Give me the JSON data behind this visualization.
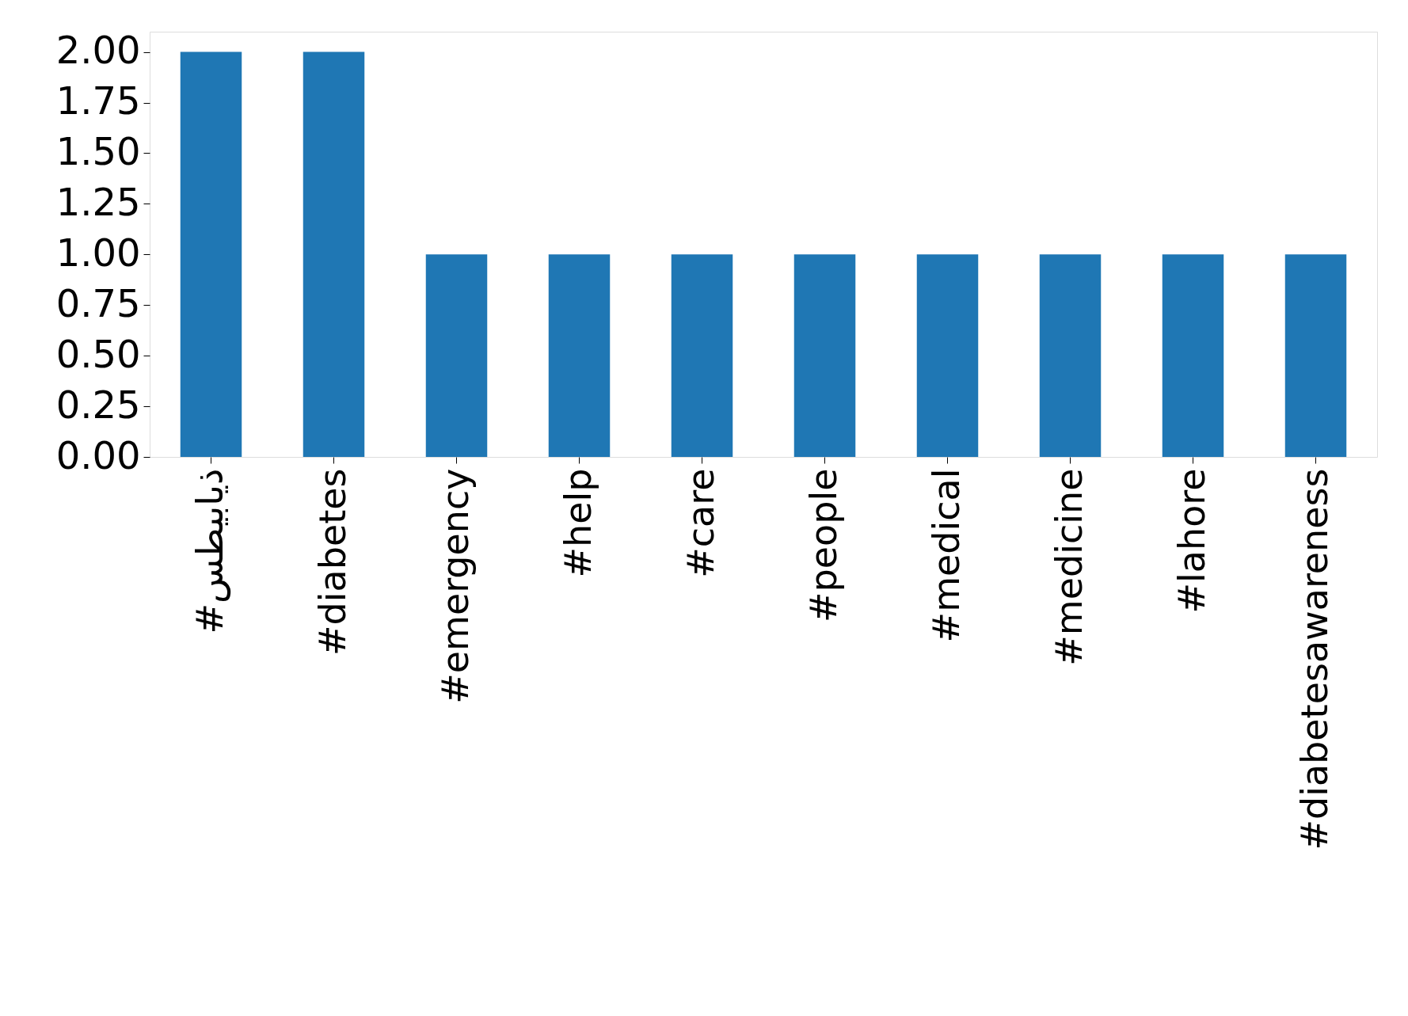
{
  "chart_data": {
    "type": "bar",
    "categories": [
      "#ذیابیطس",
      "#diabetes",
      "#emergency",
      "#help",
      "#care",
      "#people",
      "#medical",
      "#medicine",
      "#lahore",
      "#diabetesawareness"
    ],
    "values": [
      2,
      2,
      1,
      1,
      1,
      1,
      1,
      1,
      1,
      1
    ],
    "color": "#1f77b4",
    "ylim": [
      0,
      2.1
    ],
    "yticks": [
      {
        "value": 0,
        "label": "0.00"
      },
      {
        "value": 0.25,
        "label": "0.25"
      },
      {
        "value": 0.5,
        "label": "0.50"
      },
      {
        "value": 0.75,
        "label": "0.75"
      },
      {
        "value": 1,
        "label": "1.00"
      },
      {
        "value": 1.25,
        "label": "1.25"
      },
      {
        "value": 1.5,
        "label": "1.50"
      },
      {
        "value": 1.75,
        "label": "1.75"
      },
      {
        "value": 2,
        "label": "2.00"
      }
    ],
    "grid": false
  }
}
